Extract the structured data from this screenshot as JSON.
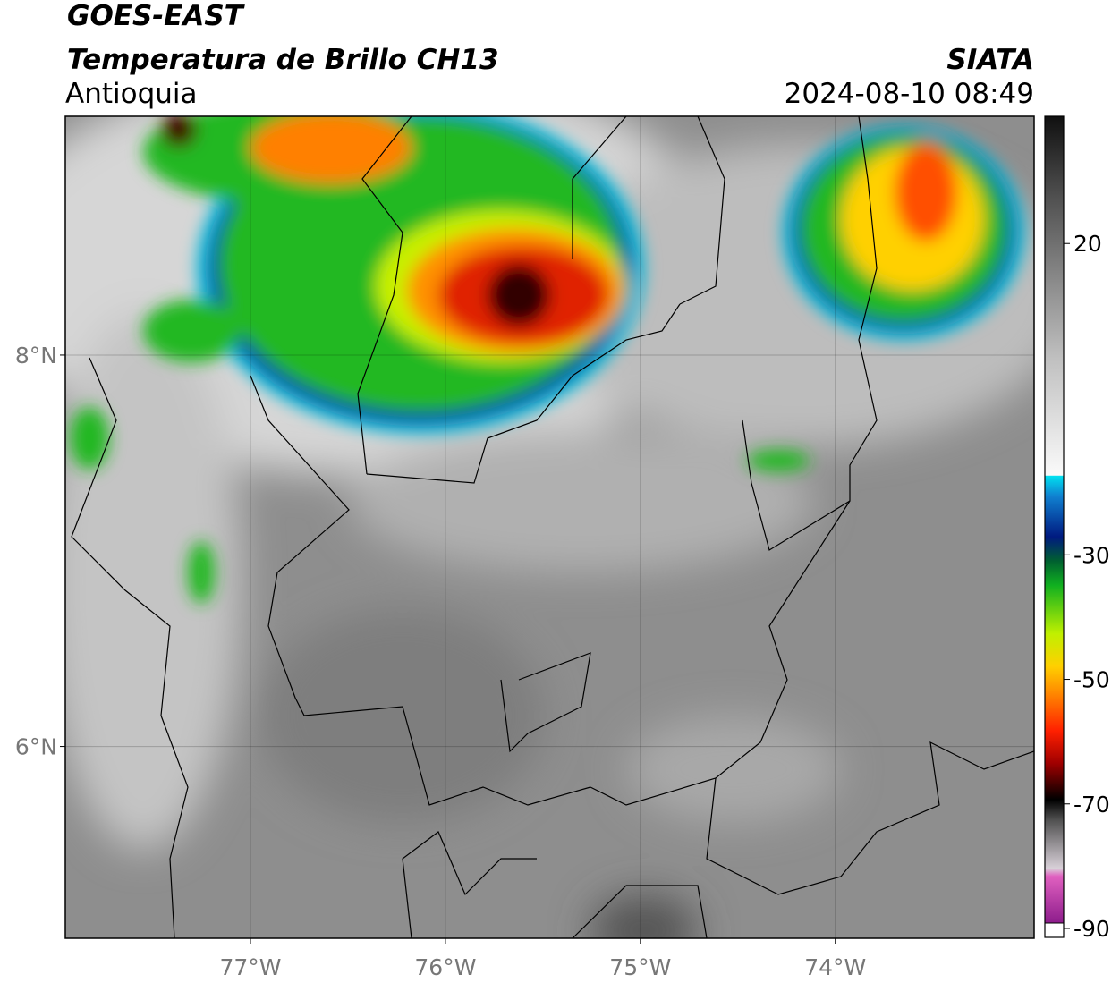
{
  "header": {
    "satellite": "GOES-EAST",
    "product": "Temperatura de Brillo CH13",
    "region": "Antioquia",
    "source": "SIATA",
    "datetime": "2024-08-10 08:49"
  },
  "map": {
    "xlim": [
      -77.95,
      -72.98
    ],
    "ylim": [
      5.02,
      9.22
    ],
    "xticks": [
      {
        "value": -77,
        "label": "77°W"
      },
      {
        "value": -76,
        "label": "76°W"
      },
      {
        "value": -75,
        "label": "75°W"
      },
      {
        "value": -74,
        "label": "74°W"
      }
    ],
    "yticks": [
      {
        "value": 8,
        "label": "8°N"
      },
      {
        "value": 6,
        "label": "6°N"
      }
    ],
    "grid": true
  },
  "colorbar": {
    "lim": [
      -90,
      40
    ],
    "ticks": [
      20,
      -30,
      -50,
      -70,
      -90
    ]
  }
}
